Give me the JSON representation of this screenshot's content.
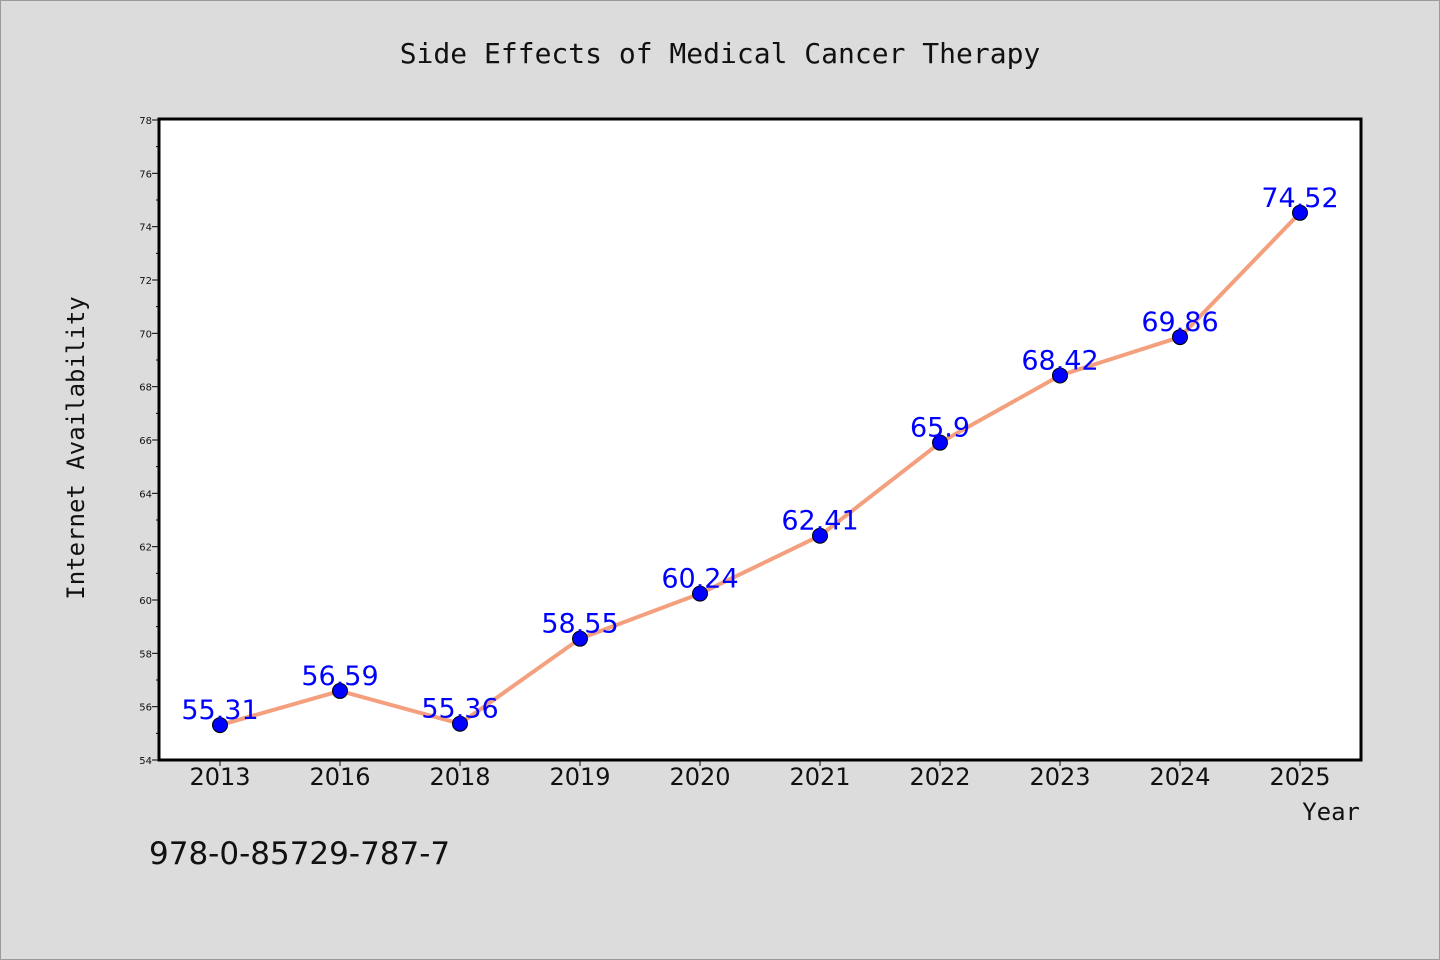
{
  "chart_data": {
    "type": "line",
    "title": "Side Effects of Medical Cancer Therapy",
    "xlabel": "Year",
    "ylabel": "Internet Availability",
    "categories": [
      "2013",
      "2016",
      "2018",
      "2019",
      "2020",
      "2021",
      "2022",
      "2023",
      "2024",
      "2025"
    ],
    "series": [
      {
        "values": [
          55.31,
          56.59,
          55.36,
          58.55,
          60.24,
          62.41,
          65.9,
          68.42,
          69.86,
          74.52
        ],
        "labels": [
          "55.31",
          "56.59",
          "55.36",
          "58.55",
          "60.24",
          "62.41",
          "65.9",
          "68.42",
          "69.86",
          "74.52"
        ]
      }
    ],
    "ylim": [
      54,
      78
    ],
    "y_ticks": [
      "54",
      "56",
      "58",
      "60",
      "62",
      "64",
      "66",
      "68",
      "70",
      "72",
      "74",
      "76",
      "78"
    ],
    "grid": false,
    "line_color": "#f4a07e",
    "marker_color": "#0000ff",
    "label_color": "#0000ff"
  },
  "annotation": {
    "isbn": "978-0-85729-787-7"
  }
}
